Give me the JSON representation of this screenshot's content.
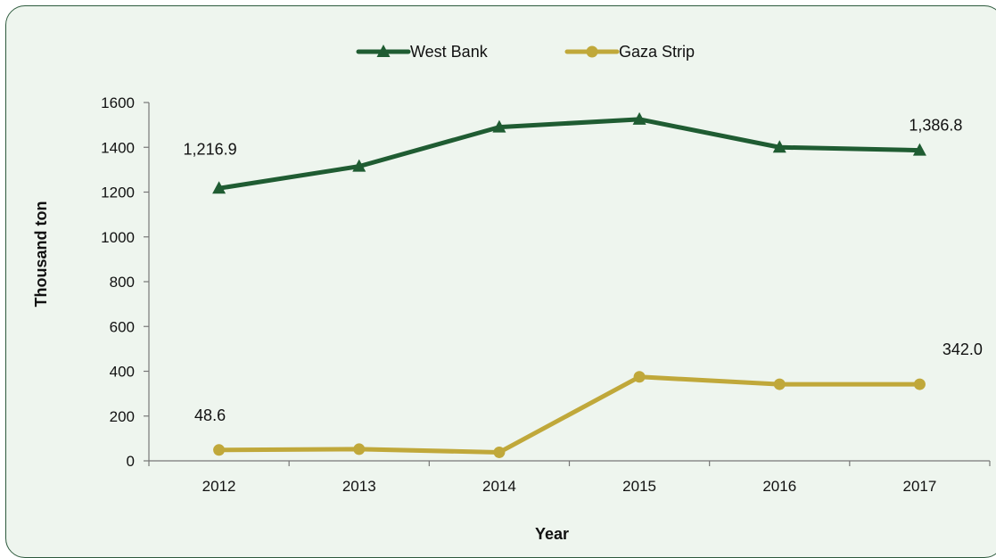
{
  "chart_data": {
    "type": "line",
    "xlabel": "Year",
    "ylabel": "Thousand ton",
    "categories": [
      "2012",
      "2013",
      "2014",
      "2015",
      "2016",
      "2017"
    ],
    "ylim": [
      0,
      1600
    ],
    "yticks": [
      0,
      200,
      400,
      600,
      800,
      1000,
      1200,
      1400,
      1600
    ],
    "legend_position": "top-center",
    "grid": false,
    "series": [
      {
        "name": "West Bank",
        "marker": "triangle",
        "color": "#1f5c32",
        "values": [
          1216.9,
          1315,
          1490,
          1525,
          1400,
          1386.8
        ],
        "labels": [
          {
            "index": 0,
            "text": "1,216.9"
          },
          {
            "index": 5,
            "text": "1,386.8"
          }
        ]
      },
      {
        "name": "Gaza Strip",
        "marker": "circle",
        "color": "#c0a83a",
        "values": [
          48.6,
          52,
          38,
          375,
          342,
          342.0
        ],
        "labels": [
          {
            "index": 0,
            "text": "48.6"
          },
          {
            "index": 5,
            "text": "342.0"
          }
        ]
      }
    ]
  }
}
